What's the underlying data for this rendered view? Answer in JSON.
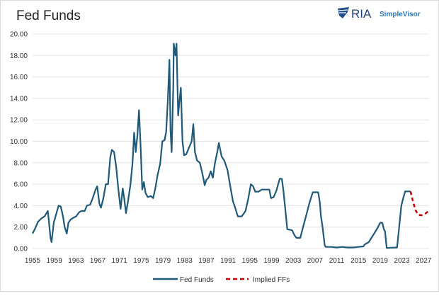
{
  "logo": {
    "brand": "RIA",
    "product": "SimpleVisor"
  },
  "chart_data": {
    "type": "line",
    "title": "Fed Funds",
    "xlabel": "",
    "ylabel": "",
    "xlim": [
      1955,
      2028
    ],
    "ylim": [
      0,
      20
    ],
    "grid": true,
    "legend_position": "bottom",
    "x_ticks": [
      "1955",
      "1959",
      "1963",
      "1967",
      "1971",
      "1975",
      "1979",
      "1983",
      "1987",
      "1991",
      "1995",
      "1999",
      "2003",
      "2007",
      "2011",
      "2015",
      "2019",
      "2023",
      "2027"
    ],
    "y_ticks": [
      "0.00",
      "2.00",
      "4.00",
      "6.00",
      "8.00",
      "10.00",
      "12.00",
      "14.00",
      "16.00",
      "18.00",
      "20.00"
    ],
    "colors": {
      "fed_funds": "#1f5a78",
      "implied": "#c00000"
    },
    "series": [
      {
        "name": "Fed Funds",
        "style": "solid",
        "points": [
          [
            1955.0,
            1.4
          ],
          [
            1955.5,
            1.9
          ],
          [
            1956.0,
            2.5
          ],
          [
            1956.6,
            2.8
          ],
          [
            1957.2,
            3.0
          ],
          [
            1957.8,
            3.5
          ],
          [
            1958.0,
            2.6
          ],
          [
            1958.3,
            1.0
          ],
          [
            1958.5,
            0.6
          ],
          [
            1958.9,
            2.4
          ],
          [
            1959.4,
            3.3
          ],
          [
            1959.8,
            4.0
          ],
          [
            1960.2,
            3.9
          ],
          [
            1960.6,
            3.0
          ],
          [
            1960.9,
            2.0
          ],
          [
            1961.3,
            1.4
          ],
          [
            1961.6,
            2.4
          ],
          [
            1962.0,
            2.7
          ],
          [
            1962.6,
            2.9
          ],
          [
            1963.0,
            3.0
          ],
          [
            1963.6,
            3.4
          ],
          [
            1964.0,
            3.5
          ],
          [
            1964.6,
            3.5
          ],
          [
            1965.0,
            4.0
          ],
          [
            1965.6,
            4.1
          ],
          [
            1966.0,
            4.6
          ],
          [
            1966.6,
            5.5
          ],
          [
            1966.9,
            5.8
          ],
          [
            1967.3,
            4.2
          ],
          [
            1967.6,
            3.8
          ],
          [
            1968.0,
            4.6
          ],
          [
            1968.5,
            6.0
          ],
          [
            1968.9,
            6.0
          ],
          [
            1969.3,
            8.5
          ],
          [
            1969.6,
            9.2
          ],
          [
            1970.0,
            9.0
          ],
          [
            1970.4,
            7.6
          ],
          [
            1970.8,
            5.5
          ],
          [
            1971.2,
            3.7
          ],
          [
            1971.6,
            5.6
          ],
          [
            1971.9,
            4.6
          ],
          [
            1972.2,
            3.3
          ],
          [
            1972.6,
            4.5
          ],
          [
            1973.0,
            5.9
          ],
          [
            1973.4,
            7.9
          ],
          [
            1973.7,
            10.8
          ],
          [
            1974.0,
            9.0
          ],
          [
            1974.3,
            10.5
          ],
          [
            1974.6,
            12.9
          ],
          [
            1974.9,
            9.5
          ],
          [
            1975.2,
            5.5
          ],
          [
            1975.5,
            6.2
          ],
          [
            1975.8,
            5.2
          ],
          [
            1976.2,
            4.8
          ],
          [
            1976.8,
            4.9
          ],
          [
            1977.2,
            4.7
          ],
          [
            1977.6,
            5.6
          ],
          [
            1978.0,
            6.8
          ],
          [
            1978.5,
            7.9
          ],
          [
            1978.9,
            10.0
          ],
          [
            1979.3,
            10.1
          ],
          [
            1979.6,
            10.9
          ],
          [
            1979.9,
            13.8
          ],
          [
            1980.2,
            17.6
          ],
          [
            1980.4,
            11.0
          ],
          [
            1980.6,
            9.0
          ],
          [
            1980.9,
            15.0
          ],
          [
            1981.0,
            19.1
          ],
          [
            1981.3,
            18.0
          ],
          [
            1981.5,
            19.1
          ],
          [
            1981.8,
            12.4
          ],
          [
            1982.0,
            13.5
          ],
          [
            1982.3,
            15.0
          ],
          [
            1982.6,
            10.0
          ],
          [
            1982.9,
            8.7
          ],
          [
            1983.3,
            8.8
          ],
          [
            1983.8,
            9.4
          ],
          [
            1984.3,
            10.0
          ],
          [
            1984.6,
            11.6
          ],
          [
            1984.9,
            9.0
          ],
          [
            1985.3,
            8.2
          ],
          [
            1985.8,
            8.0
          ],
          [
            1986.3,
            6.9
          ],
          [
            1986.7,
            5.9
          ],
          [
            1987.0,
            6.4
          ],
          [
            1987.4,
            6.6
          ],
          [
            1987.8,
            7.2
          ],
          [
            1988.2,
            6.6
          ],
          [
            1988.6,
            8.0
          ],
          [
            1989.0,
            9.0
          ],
          [
            1989.3,
            9.85
          ],
          [
            1989.8,
            8.6
          ],
          [
            1990.3,
            8.2
          ],
          [
            1990.9,
            7.3
          ],
          [
            1991.4,
            5.8
          ],
          [
            1991.9,
            4.4
          ],
          [
            1992.3,
            3.8
          ],
          [
            1992.8,
            3.0
          ],
          [
            1993.5,
            3.0
          ],
          [
            1994.2,
            3.5
          ],
          [
            1994.7,
            4.6
          ],
          [
            1995.2,
            6.0
          ],
          [
            1995.6,
            5.8
          ],
          [
            1996.0,
            5.3
          ],
          [
            1996.6,
            5.3
          ],
          [
            1997.2,
            5.5
          ],
          [
            1998.0,
            5.5
          ],
          [
            1998.6,
            5.5
          ],
          [
            1998.9,
            4.7
          ],
          [
            1999.4,
            4.8
          ],
          [
            1999.9,
            5.4
          ],
          [
            2000.5,
            6.5
          ],
          [
            2000.9,
            6.5
          ],
          [
            2001.2,
            5.3
          ],
          [
            2001.5,
            3.8
          ],
          [
            2001.9,
            1.8
          ],
          [
            2002.8,
            1.7
          ],
          [
            2003.2,
            1.25
          ],
          [
            2003.6,
            1.0
          ],
          [
            2004.3,
            1.0
          ],
          [
            2004.8,
            2.0
          ],
          [
            2005.5,
            3.3
          ],
          [
            2006.0,
            4.3
          ],
          [
            2006.6,
            5.25
          ],
          [
            2007.6,
            5.25
          ],
          [
            2007.9,
            4.3
          ],
          [
            2008.1,
            3.0
          ],
          [
            2008.4,
            2.0
          ],
          [
            2008.8,
            0.3
          ],
          [
            2009.0,
            0.15
          ],
          [
            2010.0,
            0.15
          ],
          [
            2011.0,
            0.1
          ],
          [
            2012.0,
            0.15
          ],
          [
            2013.0,
            0.1
          ],
          [
            2014.0,
            0.1
          ],
          [
            2015.0,
            0.15
          ],
          [
            2015.9,
            0.2
          ],
          [
            2016.2,
            0.4
          ],
          [
            2016.9,
            0.6
          ],
          [
            2017.4,
            1.0
          ],
          [
            2017.9,
            1.4
          ],
          [
            2018.5,
            1.9
          ],
          [
            2019.0,
            2.4
          ],
          [
            2019.4,
            2.4
          ],
          [
            2019.7,
            1.8
          ],
          [
            2019.9,
            1.6
          ],
          [
            2020.2,
            0.05
          ],
          [
            2021.0,
            0.08
          ],
          [
            2022.1,
            0.1
          ],
          [
            2022.3,
            1.0
          ],
          [
            2022.6,
            2.5
          ],
          [
            2022.9,
            4.0
          ],
          [
            2023.3,
            4.8
          ],
          [
            2023.6,
            5.33
          ],
          [
            2024.6,
            5.33
          ]
        ]
      },
      {
        "name": "Implied FFs",
        "style": "dashed",
        "points": [
          [
            2024.6,
            5.33
          ],
          [
            2025.0,
            4.5
          ],
          [
            2025.5,
            3.6
          ],
          [
            2026.0,
            3.15
          ],
          [
            2026.6,
            3.1
          ],
          [
            2027.3,
            3.25
          ],
          [
            2027.8,
            3.45
          ]
        ]
      }
    ]
  }
}
